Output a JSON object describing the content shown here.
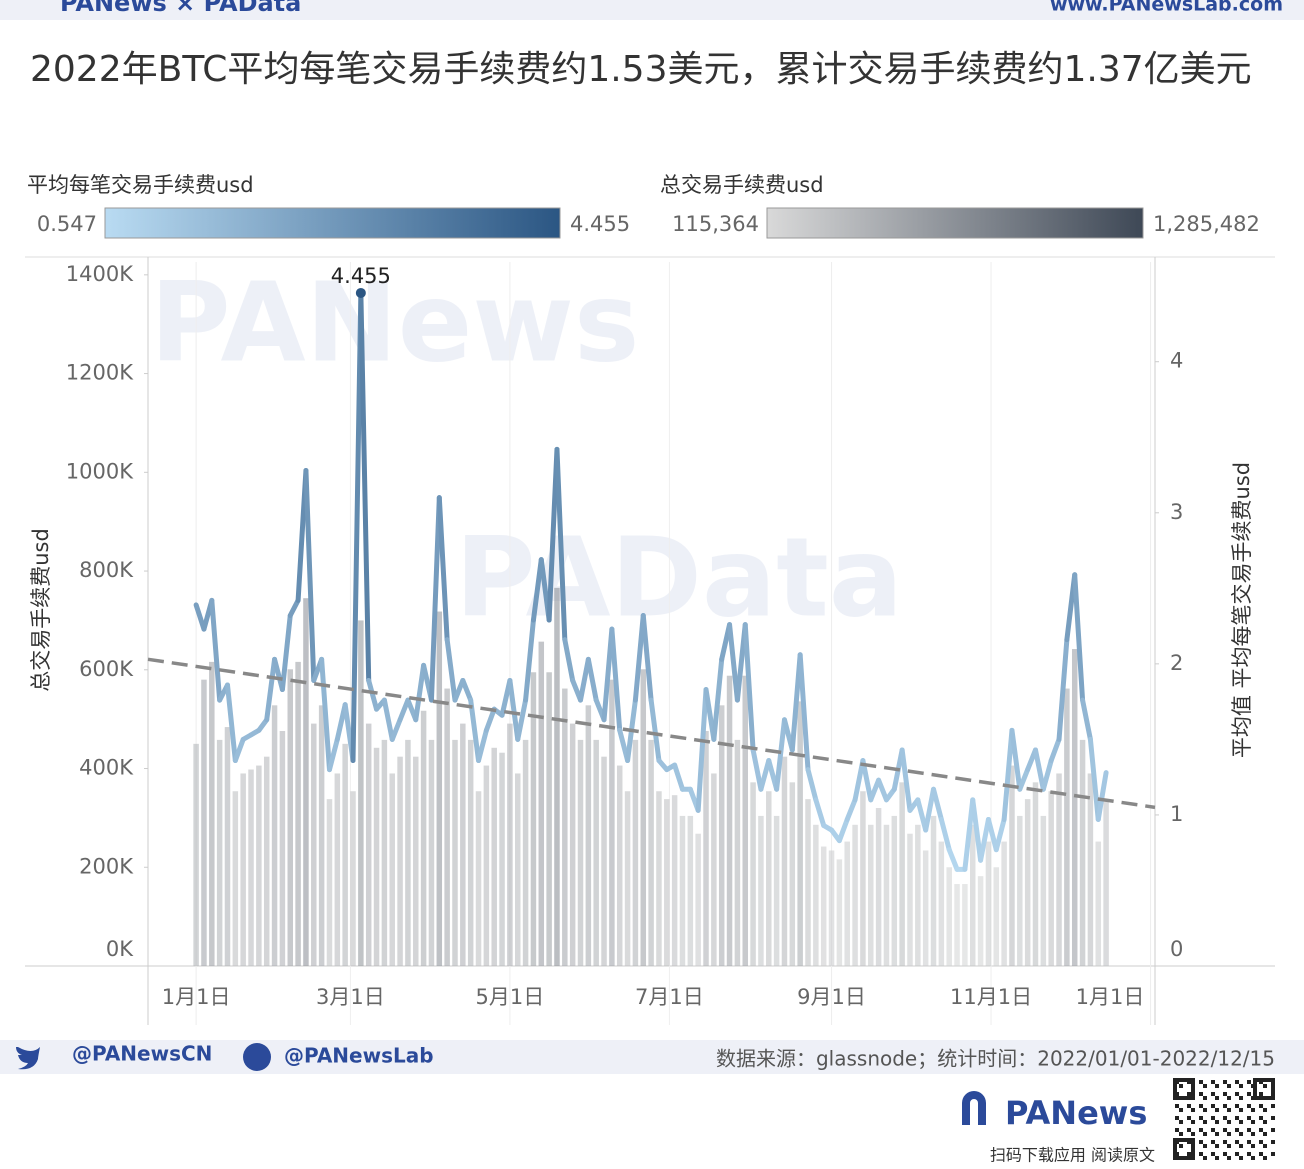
{
  "header": {
    "brand": "PANews × PAData",
    "url": "www.PANewsLab.com"
  },
  "chart_data": {
    "type": "combo",
    "title": "2022年BTC平均每笔交易手续费约1.53美元，累计交易手续费约1.37亿美元",
    "y_label": "总交易手续费usd",
    "y2_label": "平均值 平均每笔交易手续费usd",
    "watermarks": [
      "PANews",
      "PAData"
    ],
    "x": [
      0,
      3,
      6,
      9,
      12,
      15,
      18,
      21,
      24,
      27,
      30,
      33,
      36,
      39,
      42,
      45,
      48,
      51,
      54,
      57,
      60,
      63,
      66,
      69,
      72,
      75,
      78,
      81,
      84,
      87,
      90,
      93,
      96,
      99,
      102,
      105,
      108,
      111,
      114,
      117,
      120,
      123,
      126,
      129,
      132,
      135,
      138,
      141,
      144,
      147,
      150,
      153,
      156,
      159,
      162,
      165,
      168,
      171,
      174,
      177,
      180,
      183,
      186,
      189,
      192,
      195,
      198,
      201,
      204,
      207,
      210,
      213,
      216,
      219,
      222,
      225,
      228,
      231,
      234,
      237,
      240,
      243,
      246,
      249,
      252,
      255,
      258,
      261,
      264,
      267,
      270,
      273,
      276,
      279,
      282,
      285,
      288,
      291,
      294,
      297,
      300,
      303,
      306,
      309,
      312,
      315,
      318,
      321,
      324,
      327,
      330,
      333,
      336,
      339,
      342,
      345,
      348
    ],
    "xlim": [
      -18.4,
      366.7
    ],
    "xticks": [
      {
        "value": 0,
        "label": "1月1日"
      },
      {
        "value": 59,
        "label": "3月1日"
      },
      {
        "value": 120,
        "label": "5月1日"
      },
      {
        "value": 181,
        "label": "7月1日"
      },
      {
        "value": 243,
        "label": "9月1日"
      },
      {
        "value": 304,
        "label": "11月1日"
      },
      {
        "value": 365,
        "label": "1月1日"
      }
    ],
    "ylim": [
      0,
      1426000
    ],
    "yticks": [
      {
        "value": 0,
        "label": "0K"
      },
      {
        "value": 200000,
        "label": "200K"
      },
      {
        "value": 400000,
        "label": "400K"
      },
      {
        "value": 600000,
        "label": "600K"
      },
      {
        "value": 800000,
        "label": "800K"
      },
      {
        "value": 1000000,
        "label": "1000K"
      },
      {
        "value": 1200000,
        "label": "1200K"
      },
      {
        "value": 1400000,
        "label": "1400K"
      }
    ],
    "y2lim": [
      0,
      4.66
    ],
    "y2ticks": [
      0,
      1,
      2,
      3,
      4
    ],
    "series": [
      {
        "name": "平均每笔交易手续费usd",
        "type": "line",
        "axis": "y2",
        "colors": [
          "#b9dbf2",
          "#2b5683"
        ],
        "color_scale": [
          0.547,
          4.455
        ],
        "values": [
          2.39,
          2.23,
          2.42,
          1.76,
          1.86,
          1.36,
          1.5,
          1.53,
          1.56,
          1.63,
          2.03,
          1.83,
          2.32,
          2.42,
          3.28,
          1.89,
          2.03,
          1.3,
          1.5,
          1.73,
          1.36,
          4.455,
          1.89,
          1.7,
          1.76,
          1.5,
          1.63,
          1.76,
          1.63,
          1.99,
          1.76,
          3.1,
          2.16,
          1.76,
          1.89,
          1.76,
          1.36,
          1.56,
          1.7,
          1.66,
          1.89,
          1.5,
          1.76,
          2.29,
          2.69,
          2.29,
          3.42,
          2.16,
          1.89,
          1.76,
          2.03,
          1.76,
          1.63,
          2.23,
          1.56,
          1.36,
          1.76,
          2.32,
          1.76,
          1.36,
          1.3,
          1.33,
          1.17,
          1.17,
          1.03,
          1.83,
          1.5,
          2.03,
          2.26,
          1.76,
          2.26,
          1.43,
          1.17,
          1.36,
          1.17,
          1.63,
          1.43,
          2.06,
          1.3,
          1.1,
          0.93,
          0.9,
          0.83,
          0.97,
          1.1,
          1.36,
          1.1,
          1.23,
          1.1,
          1.17,
          1.43,
          1.03,
          1.1,
          0.9,
          1.17,
          0.97,
          0.77,
          0.64,
          0.64,
          1.1,
          0.7,
          0.97,
          0.77,
          0.97,
          1.56,
          1.17,
          1.3,
          1.43,
          1.17,
          1.36,
          1.5,
          2.16,
          2.59,
          1.76,
          1.5,
          0.97,
          1.28
        ]
      },
      {
        "name": "总交易手续费usd",
        "type": "bar",
        "colors": [
          "#d9d9d9",
          "#3e4856"
        ],
        "color_scale": [
          {
            "value": 115364,
            "label": "115,364"
          },
          {
            "value": 1285482,
            "label": "1,285,482"
          }
        ],
        "values": [
          450000,
          580000,
          616000,
          458000,
          484000,
          354000,
          390000,
          398000,
          406000,
          424000,
          528000,
          476000,
          601000,
          616000,
          745000,
          491000,
          528000,
          338000,
          390000,
          450000,
          354000,
          700000,
          491000,
          442000,
          458000,
          390000,
          424000,
          458000,
          424000,
          517000,
          458000,
          718000,
          562000,
          458000,
          491000,
          458000,
          354000,
          406000,
          442000,
          432000,
          491000,
          390000,
          458000,
          595000,
          657000,
          595000,
          766000,
          562000,
          491000,
          458000,
          528000,
          458000,
          424000,
          580000,
          406000,
          354000,
          458000,
          601000,
          458000,
          354000,
          338000,
          346000,
          304000,
          304000,
          268000,
          476000,
          390000,
          528000,
          588000,
          458000,
          588000,
          372000,
          304000,
          354000,
          304000,
          424000,
          372000,
          536000,
          338000,
          286000,
          242000,
          234000,
          216000,
          252000,
          286000,
          354000,
          286000,
          320000,
          286000,
          304000,
          372000,
          268000,
          286000,
          234000,
          304000,
          252000,
          200000,
          166000,
          166000,
          286000,
          182000,
          252000,
          200000,
          252000,
          406000,
          304000,
          338000,
          372000,
          304000,
          354000,
          390000,
          562000,
          642000,
          458000,
          390000,
          252000,
          333000
        ]
      }
    ],
    "trend": {
      "x": [
        -18.4,
        366.7
      ],
      "values": [
        2.03,
        1.05
      ],
      "color": "#888888"
    }
  },
  "footer": {
    "twitter": "@PANewsCN",
    "facebook": "@PANewsLab",
    "source": "数据来源：glassnode；统计时间：2022/01/01-2022/12/15",
    "logo": "PANews",
    "qr_caption": "扫码下载应用 阅读原文"
  }
}
